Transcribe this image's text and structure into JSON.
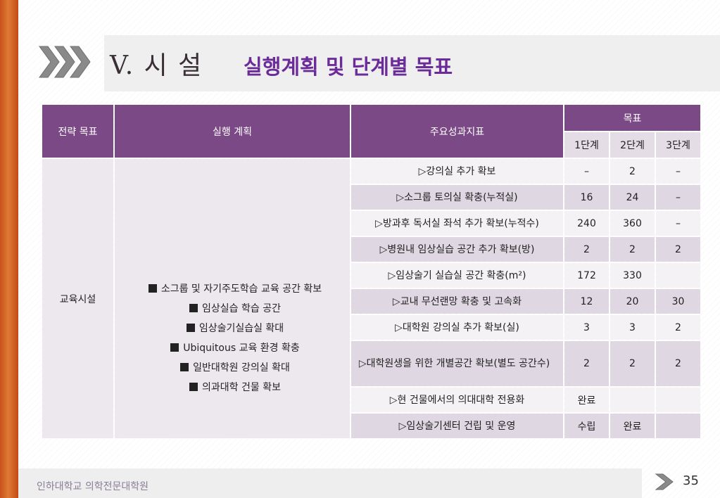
{
  "header": {
    "title_main": "V. 시 설",
    "title_sub": "실행계획 및 단계별 목표"
  },
  "colors": {
    "sidebar": "#d4632a",
    "table_header": "#7b4a86",
    "title_sub": "#6b2c9a"
  },
  "table": {
    "headers": {
      "strategy": "전략 목표",
      "plan": "실행 계획",
      "indicator": "주요성과지표",
      "goal": "목표",
      "levels": [
        "1단계",
        "2단계",
        "3단계"
      ]
    },
    "category": "교육시설",
    "plans": [
      "소그룹 및 자기주도학습 교육 공간 확보",
      "임상실습 학습 공간",
      "임상술기실습실 확대",
      "Ubiquitous 교육 환경 확충",
      "일반대학원 강의실 확대",
      "의과대학 건물 확보"
    ],
    "rows": [
      {
        "indicator": "▷강의실 추가 확보",
        "l1": "–",
        "l2": "2",
        "l3": "–"
      },
      {
        "indicator": "▷소그룹 토의실 확충(누적실)",
        "l1": "16",
        "l2": "24",
        "l3": "–"
      },
      {
        "indicator": "▷방과후 독서실 좌석 추가 확보(누적수)",
        "l1": "240",
        "l2": "360",
        "l3": "–"
      },
      {
        "indicator": "▷병원내 임상실습 공간 추가 확보(방)",
        "l1": "2",
        "l2": "2",
        "l3": "2"
      },
      {
        "indicator": "▷임상술기 실습실 공간 확충(m²)",
        "l1": "172",
        "l2": "330",
        "l3": ""
      },
      {
        "indicator": "▷교내 무선랜망 확충 및 고속화",
        "l1": "12",
        "l2": "20",
        "l3": "30"
      },
      {
        "indicator": "▷대학원 강의실 추가 확보(실)",
        "l1": "3",
        "l2": "3",
        "l3": "2"
      },
      {
        "indicator": "▷대학원생을 위한 개별공간 확보(별도 공간수)",
        "l1": "2",
        "l2": "2",
        "l3": "2"
      },
      {
        "indicator": "▷현 건물에서의 의대대학 전용화",
        "l1": "완료",
        "l2": "",
        "l3": ""
      },
      {
        "indicator": "▷임상술기센터 건립 및 운영",
        "l1": "수립",
        "l2": "완료",
        "l3": ""
      }
    ]
  },
  "footer": {
    "institution": "인하대학교 의학전문대학원",
    "page_number": "35"
  }
}
